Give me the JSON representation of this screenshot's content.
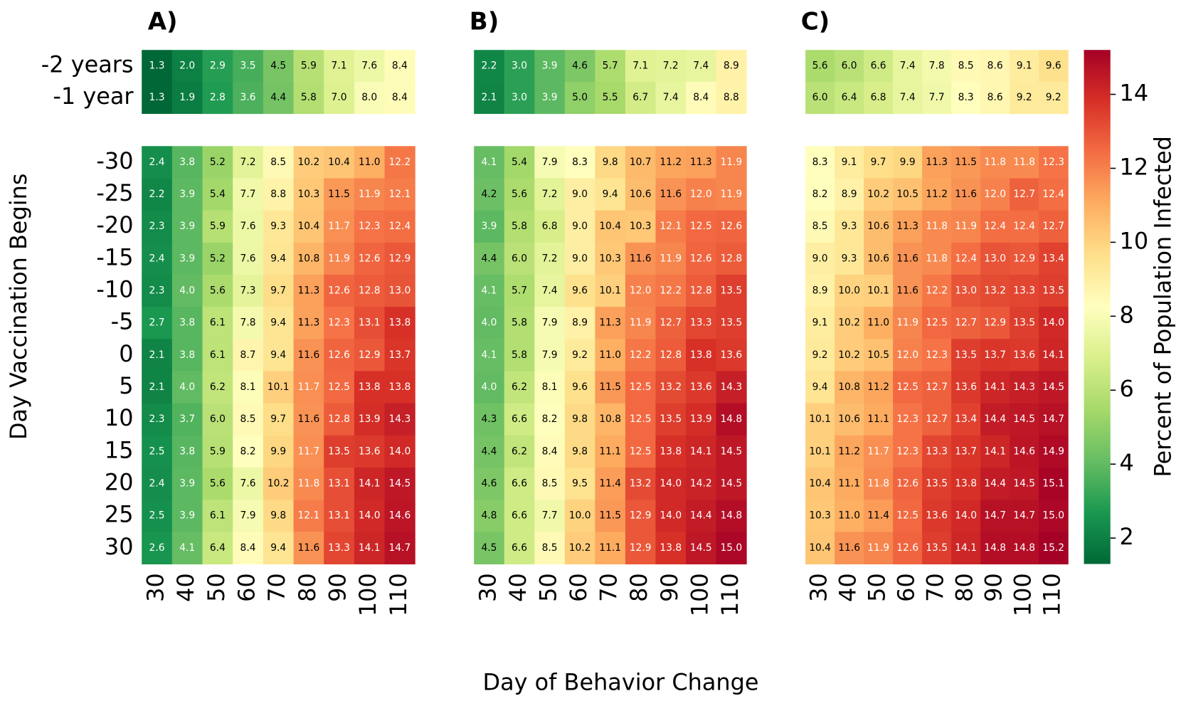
{
  "chart_data": [
    {
      "type": "heatmap",
      "title": "A)",
      "x": [
        30,
        40,
        50,
        60,
        70,
        80,
        90,
        100,
        110
      ],
      "y": [
        "-2 years",
        "-1 year",
        -30,
        -25,
        -20,
        -15,
        -10,
        -5,
        0,
        5,
        10,
        15,
        20,
        25,
        30
      ],
      "values": [
        [
          1.3,
          2.0,
          2.9,
          3.5,
          4.5,
          5.9,
          7.1,
          7.6,
          8.4
        ],
        [
          1.3,
          1.9,
          2.8,
          3.6,
          4.4,
          5.8,
          7.0,
          8.0,
          8.4
        ],
        [
          2.4,
          3.8,
          5.2,
          7.2,
          8.5,
          10.2,
          10.4,
          11.0,
          12.2
        ],
        [
          2.2,
          3.9,
          5.4,
          7.7,
          8.8,
          10.3,
          11.5,
          11.9,
          12.1
        ],
        [
          2.3,
          3.9,
          5.9,
          7.6,
          9.3,
          10.4,
          11.7,
          12.3,
          12.4
        ],
        [
          2.4,
          3.9,
          5.2,
          7.6,
          9.4,
          10.8,
          11.9,
          12.6,
          12.9
        ],
        [
          2.3,
          4.0,
          5.6,
          7.3,
          9.7,
          11.3,
          12.6,
          12.8,
          13.0
        ],
        [
          2.7,
          3.8,
          6.1,
          7.8,
          9.4,
          11.3,
          12.3,
          13.1,
          13.8
        ],
        [
          2.1,
          3.8,
          6.1,
          8.7,
          9.4,
          11.6,
          12.6,
          12.9,
          13.7
        ],
        [
          2.1,
          4.0,
          6.2,
          8.1,
          10.1,
          11.7,
          12.5,
          13.8,
          13.8
        ],
        [
          2.3,
          3.7,
          6.0,
          8.5,
          9.7,
          11.6,
          12.8,
          13.9,
          14.3
        ],
        [
          2.5,
          3.8,
          5.9,
          8.2,
          9.9,
          11.7,
          13.5,
          13.6,
          14.0
        ],
        [
          2.4,
          3.9,
          5.6,
          7.6,
          10.2,
          11.8,
          13.1,
          14.1,
          14.5
        ],
        [
          2.5,
          3.9,
          6.1,
          7.9,
          9.8,
          12.1,
          13.1,
          14.0,
          14.6
        ],
        [
          2.6,
          4.1,
          6.4,
          8.4,
          9.4,
          11.6,
          13.3,
          14.1,
          14.7
        ]
      ],
      "value_labels": [
        [
          "1.3",
          "2.0",
          "2.9",
          "3.5",
          "4.5",
          "5.9",
          "7.1",
          "7.6",
          "8.4"
        ],
        [
          "1.3",
          "1.9",
          "2.8",
          "3.6",
          "4.4",
          "5.8",
          "7.0",
          "8.0",
          "8.4"
        ],
        [
          "2.4",
          "3.8",
          "5.2",
          "7.2",
          "8.5",
          "10.2",
          "10.4",
          "11.0",
          "12.2"
        ],
        [
          "2.2",
          "3.9",
          "5.4",
          "7.7",
          "8.8",
          "10.3",
          "11.5",
          "11.9",
          "12.1"
        ],
        [
          "2.3",
          "3.9",
          "5.9",
          "7.6",
          "9.3",
          "10.4",
          "11.7",
          "12.3",
          "12.4"
        ],
        [
          "2.4",
          "3.9",
          "5.2",
          "7.6",
          "9.4",
          "10.8",
          "11.9",
          "12.6",
          "12.9"
        ],
        [
          "2.3",
          "4.0",
          "5.6",
          "7.3",
          "9.7",
          "11.3",
          "12.6",
          "12.8",
          "13.0"
        ],
        [
          "2.7",
          "3.8",
          "6.1",
          "7.8",
          "9.4",
          "11.3",
          "12.3",
          "13.1",
          "13.8"
        ],
        [
          "2.1",
          "3.8",
          "6.1",
          "8.7",
          "9.4",
          "11.6",
          "12.6",
          "12.9",
          "13.7"
        ],
        [
          "2.1",
          "4.0",
          "6.2",
          "8.1",
          "10.1",
          "11.7",
          "12.5",
          "13.8",
          "13.8"
        ],
        [
          "2.3",
          "3.7",
          "6.0",
          "8.5",
          "9.7",
          "11.6",
          "12.8",
          "13.9",
          "14.3"
        ],
        [
          "2.5",
          "3.8",
          "5.9",
          "8.2",
          "9.9",
          "11.7",
          "13.5",
          "13.6",
          "14.0"
        ],
        [
          "2.4",
          "3.9",
          "5.6",
          "7.6",
          "10.2",
          "11.8",
          "13.1",
          "14.1",
          "14.5"
        ],
        [
          "2.5",
          "3.9",
          "6.1",
          "7.9",
          "9.8",
          "12.1",
          "13.1",
          "14.0",
          "14.6"
        ],
        [
          "2.6",
          "4.1",
          "6.4",
          "8.4",
          "9.4",
          "11.6",
          "13.3",
          "14.1",
          "14.7"
        ]
      ]
    },
    {
      "type": "heatmap",
      "title": "B)",
      "x": [
        30,
        40,
        50,
        60,
        70,
        80,
        90,
        100,
        110
      ],
      "values": [
        [
          2.2,
          3.0,
          3.9,
          4.6,
          5.7,
          7.1,
          7.2,
          7.4,
          8.9
        ],
        [
          2.1,
          3.0,
          3.9,
          5.0,
          5.5,
          6.7,
          7.4,
          8.4,
          8.8
        ],
        [
          4.1,
          5.4,
          7.9,
          8.3,
          9.8,
          10.7,
          11.2,
          11.3,
          11.9
        ],
        [
          4.2,
          5.6,
          7.2,
          9.0,
          9.4,
          10.6,
          11.6,
          12.0,
          11.9
        ],
        [
          3.9,
          5.8,
          6.8,
          9.0,
          10.4,
          10.3,
          12.1,
          12.5,
          12.6
        ],
        [
          4.4,
          6.0,
          7.2,
          9.0,
          10.3,
          11.6,
          11.9,
          12.6,
          12.8
        ],
        [
          4.1,
          5.7,
          7.4,
          9.6,
          10.1,
          12.0,
          12.2,
          12.8,
          13.5
        ],
        [
          4.0,
          5.8,
          7.9,
          8.9,
          11.3,
          11.9,
          12.7,
          13.3,
          13.5
        ],
        [
          4.1,
          5.8,
          7.9,
          9.2,
          11.0,
          12.2,
          12.8,
          13.8,
          13.6
        ],
        [
          4.0,
          6.2,
          8.1,
          9.6,
          11.5,
          12.5,
          13.2,
          13.6,
          14.3
        ],
        [
          4.3,
          6.6,
          8.2,
          9.8,
          10.8,
          12.5,
          13.5,
          13.9,
          14.8
        ],
        [
          4.4,
          6.2,
          8.4,
          9.8,
          11.1,
          12.5,
          13.8,
          14.1,
          14.5
        ],
        [
          4.6,
          6.6,
          8.5,
          9.5,
          11.4,
          13.2,
          14.0,
          14.2,
          14.5
        ],
        [
          4.8,
          6.6,
          7.7,
          10.0,
          11.5,
          12.9,
          14.0,
          14.4,
          14.8
        ],
        [
          4.5,
          6.6,
          8.5,
          10.2,
          11.1,
          12.9,
          13.8,
          14.5,
          15.0
        ]
      ],
      "value_labels": [
        [
          "2.2",
          "3.0",
          "3.9",
          "4.6",
          "5.7",
          "7.1",
          "7.2",
          "7.4",
          "8.9"
        ],
        [
          "2.1",
          "3.0",
          "3.9",
          "5.0",
          "5.5",
          "6.7",
          "7.4",
          "8.4",
          "8.8"
        ],
        [
          "4.1",
          "5.4",
          "7.9",
          "8.3",
          "9.8",
          "10.7",
          "11.2",
          "11.3",
          "11.9"
        ],
        [
          "4.2",
          "5.6",
          "7.2",
          "9.0",
          "9.4",
          "10.6",
          "11.6",
          "12.0",
          "11.9"
        ],
        [
          "3.9",
          "5.8",
          "6.8",
          "9.0",
          "10.4",
          "10.3",
          "12.1",
          "12.5",
          "12.6"
        ],
        [
          "4.4",
          "6.0",
          "7.2",
          "9.0",
          "10.3",
          "11.6",
          "11.9",
          "12.6",
          "12.8"
        ],
        [
          "4.1",
          "5.7",
          "7.4",
          "9.6",
          "10.1",
          "12.0",
          "12.2",
          "12.8",
          "13.5"
        ],
        [
          "4.0",
          "5.8",
          "7.9",
          "8.9",
          "11.3",
          "11.9",
          "12.7",
          "13.3",
          "13.5"
        ],
        [
          "4.1",
          "5.8",
          "7.9",
          "9.2",
          "11.0",
          "12.2",
          "12.8",
          "13.8",
          "13.6"
        ],
        [
          "4.0",
          "6.2",
          "8.1",
          "9.6",
          "11.5",
          "12.5",
          "13.2",
          "13.6",
          "14.3"
        ],
        [
          "4.3",
          "6.6",
          "8.2",
          "9.8",
          "10.8",
          "12.5",
          "13.5",
          "13.9",
          "14.8"
        ],
        [
          "4.4",
          "6.2",
          "8.4",
          "9.8",
          "11.1",
          "12.5",
          "13.8",
          "14.1",
          "14.5"
        ],
        [
          "4.6",
          "6.6",
          "8.5",
          "9.5",
          "11.4",
          "13.2",
          "14.0",
          "14.2",
          "14.5"
        ],
        [
          "4.8",
          "6.6",
          "7.7",
          "10.0",
          "11.5",
          "12.9",
          "14.0",
          "14.4",
          "14.8"
        ],
        [
          "4.5",
          "6.6",
          "8.5",
          "10.2",
          "11.1",
          "12.9",
          "13.8",
          "14.5",
          "15.0"
        ]
      ]
    },
    {
      "type": "heatmap",
      "title": "C)",
      "x": [
        30,
        40,
        50,
        60,
        70,
        80,
        90,
        100,
        110
      ],
      "values": [
        [
          5.6,
          6.0,
          6.6,
          7.4,
          7.8,
          8.5,
          8.6,
          9.1,
          9.6
        ],
        [
          6.0,
          6.4,
          6.8,
          7.4,
          7.7,
          8.3,
          8.6,
          9.2,
          9.2
        ],
        [
          8.3,
          9.1,
          9.7,
          9.9,
          11.3,
          11.5,
          11.8,
          11.8,
          12.3
        ],
        [
          8.2,
          8.9,
          10.2,
          10.5,
          11.2,
          11.6,
          12.0,
          12.7,
          12.4
        ],
        [
          8.5,
          9.3,
          10.6,
          11.3,
          11.8,
          11.9,
          12.4,
          12.4,
          12.7
        ],
        [
          9.0,
          9.3,
          10.6,
          11.6,
          11.8,
          12.4,
          13.0,
          12.9,
          13.4
        ],
        [
          8.9,
          10.0,
          10.1,
          11.6,
          12.2,
          13.0,
          13.2,
          13.3,
          13.5
        ],
        [
          9.1,
          10.2,
          11.0,
          11.9,
          12.5,
          12.7,
          12.9,
          13.5,
          14.0
        ],
        [
          9.2,
          10.2,
          10.5,
          12.0,
          12.3,
          13.5,
          13.7,
          13.6,
          14.1
        ],
        [
          9.4,
          10.8,
          11.2,
          12.5,
          12.7,
          13.6,
          14.1,
          14.3,
          14.5
        ],
        [
          10.1,
          10.6,
          11.1,
          12.3,
          12.7,
          13.4,
          14.4,
          14.5,
          14.7
        ],
        [
          10.1,
          11.2,
          11.7,
          12.3,
          13.3,
          13.7,
          14.1,
          14.6,
          14.9
        ],
        [
          10.4,
          11.1,
          11.8,
          12.6,
          13.5,
          13.8,
          14.4,
          14.5,
          15.1
        ],
        [
          10.3,
          11.0,
          11.4,
          12.5,
          13.6,
          14.0,
          14.7,
          14.7,
          15.0
        ],
        [
          10.4,
          11.6,
          11.9,
          12.6,
          13.5,
          14.1,
          14.8,
          14.8,
          15.2
        ]
      ],
      "value_labels": [
        [
          "5.6",
          "6.0",
          "6.6",
          "7.4",
          "7.8",
          "8.5",
          "8.6",
          "9.1",
          "9.6"
        ],
        [
          "6.0",
          "6.4",
          "6.8",
          "7.4",
          "7.7",
          "8.3",
          "8.6",
          "9.2",
          "9.2"
        ],
        [
          "8.3",
          "9.1",
          "9.7",
          "9.9",
          "11.3",
          "11.5",
          "11.8",
          "11.8",
          "12.3"
        ],
        [
          "8.2",
          "8.9",
          "10.2",
          "10.5",
          "11.2",
          "11.6",
          "12.0",
          "12.7",
          "12.4"
        ],
        [
          "8.5",
          "9.3",
          "10.6",
          "11.3",
          "11.8",
          "11.9",
          "12.4",
          "12.4",
          "12.7"
        ],
        [
          "9.0",
          "9.3",
          "10.6",
          "11.6",
          "11.8",
          "12.4",
          "13.0",
          "12.9",
          "13.4"
        ],
        [
          "8.9",
          "10.0",
          "10.1",
          "11.6",
          "12.2",
          "13.0",
          "13.2",
          "13.3",
          "13.5"
        ],
        [
          "9.1",
          "10.2",
          "11.0",
          "11.9",
          "12.5",
          "12.7",
          "12.9",
          "13.5",
          "14.0"
        ],
        [
          "9.2",
          "10.2",
          "10.5",
          "12.0",
          "12.3",
          "13.5",
          "13.7",
          "13.6",
          "14.1"
        ],
        [
          "9.4",
          "10.8",
          "11.2",
          "12.5",
          "12.7",
          "13.6",
          "14.1",
          "14.3",
          "14.5"
        ],
        [
          "10.1",
          "10.6",
          "11.1",
          "12.3",
          "12.7",
          "13.4",
          "14.4",
          "14.5",
          "14.7"
        ],
        [
          "10.1",
          "11.2",
          "11.7",
          "12.3",
          "13.3",
          "13.7",
          "14.1",
          "14.6",
          "14.9"
        ],
        [
          "10.4",
          "11.1",
          "11.8",
          "12.6",
          "13.5",
          "13.8",
          "14.4",
          "14.5",
          "15.1"
        ],
        [
          "10.3",
          "11.0",
          "11.4",
          "12.5",
          "13.6",
          "14.0",
          "14.7",
          "14.7",
          "15.0"
        ],
        [
          "10.4",
          "11.6",
          "11.9",
          "12.6",
          "13.5",
          "14.1",
          "14.8",
          "14.8",
          "15.2"
        ]
      ]
    }
  ],
  "figure": {
    "xlabel": "Day of Behavior Change",
    "ylabel": "Day Vaccination Begins",
    "colorbar": {
      "label": "Percent of Population Infected",
      "lim": [
        1.3,
        15.2
      ],
      "ticks": [
        2,
        4,
        6,
        8,
        10,
        12,
        14
      ],
      "colors": [
        "#006837",
        "#1a9850",
        "#66bd63",
        "#a6d96a",
        "#d9ef8b",
        "#ffffbf",
        "#fee08b",
        "#fdae61",
        "#f46d43",
        "#d73027",
        "#a50026"
      ]
    }
  }
}
